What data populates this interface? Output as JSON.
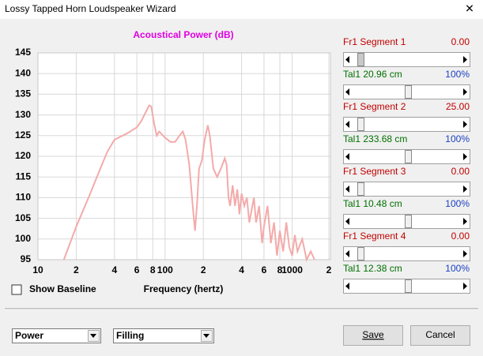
{
  "window": {
    "title": "Lossy Tapped Horn Loudspeaker Wizard",
    "close": "✕"
  },
  "chart_data": {
    "type": "line",
    "title": "Acoustical Power (dB)",
    "xlabel": "Frequency (hertz)",
    "log_x": true,
    "grid": true,
    "color": "#f4aaaa",
    "xlim": [
      10,
      2000
    ],
    "ylim": [
      95,
      145
    ],
    "xticks": [
      10,
      {
        "value": 20,
        "label": "2"
      },
      {
        "value": 40,
        "label": "4"
      },
      {
        "value": 60,
        "label": "6"
      },
      {
        "value": 80,
        "label": "8"
      },
      100,
      {
        "value": 200,
        "label": "2"
      },
      {
        "value": 400,
        "label": "4"
      },
      {
        "value": 600,
        "label": "6"
      },
      {
        "value": 800,
        "label": "8"
      },
      1000,
      {
        "value": 2000,
        "label": "2"
      }
    ],
    "yticks": [
      95,
      100,
      105,
      110,
      115,
      120,
      125,
      130,
      135,
      140,
      145
    ],
    "x": [
      16,
      20,
      25,
      30,
      35,
      40,
      50,
      60,
      65,
      70,
      75,
      78,
      82,
      86,
      90,
      100,
      110,
      120,
      130,
      138,
      145,
      155,
      165,
      172,
      178,
      185,
      195,
      205,
      217,
      225,
      240,
      257,
      275,
      295,
      305,
      316,
      325,
      340,
      355,
      370,
      385,
      400,
      420,
      440,
      460,
      480,
      500,
      520,
      550,
      580,
      600,
      640,
      680,
      720,
      760,
      800,
      850,
      900,
      950,
      1000,
      1050,
      1100,
      1200,
      1300,
      1400,
      1500
    ],
    "values": [
      95,
      103,
      110,
      116,
      121,
      124,
      125.5,
      127,
      128.5,
      130.5,
      132.3,
      132,
      128,
      125,
      126,
      124.5,
      123.5,
      123.5,
      125,
      126,
      124,
      118,
      108,
      102,
      108,
      117,
      119,
      124,
      127.5,
      125,
      117,
      115,
      117,
      119.5,
      118,
      110,
      108,
      113,
      108,
      112,
      106,
      111,
      108,
      110,
      104,
      107,
      110,
      104,
      108,
      99,
      103,
      108,
      99,
      104,
      96,
      102,
      97,
      104,
      98,
      96,
      101,
      97,
      100,
      95,
      97,
      95
    ]
  },
  "controls": {
    "sliders": [
      {
        "label": "Fr1  Segment 1",
        "value": "0.00"
      },
      {
        "label": "Tal1  20.96 cm",
        "value": "100%"
      },
      {
        "label": "Fr1  Segment 2",
        "value": "25.00"
      },
      {
        "label": "Tal1  233.68 cm",
        "value": "100%"
      },
      {
        "label": "Fr1  Segment 3",
        "value": "0.00"
      },
      {
        "label": "Tal1  10.48 cm",
        "value": "100%"
      },
      {
        "label": "Fr1  Segment 4",
        "value": "0.00"
      },
      {
        "label": "Tal1  12.38 cm",
        "value": "100%"
      }
    ],
    "show_baseline": "Show Baseline",
    "mode_select": "Power",
    "fill_select": "Filling",
    "save": "Save",
    "cancel": "Cancel"
  }
}
